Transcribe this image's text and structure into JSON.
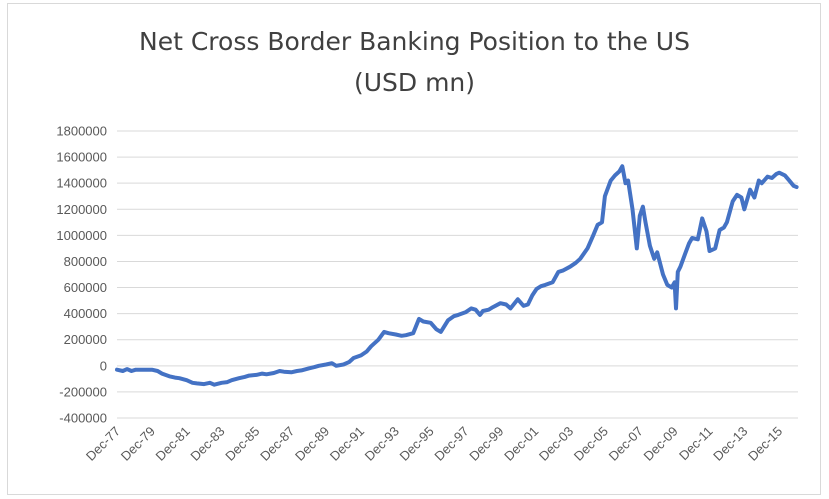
{
  "chart_data": {
    "type": "line",
    "title_line1": "Net Cross Border Banking Position to the US",
    "title_line2": "(USD mn)",
    "xlabel": "",
    "ylabel": "",
    "ylim": [
      -400000,
      1800000
    ],
    "y_ticks": [
      -400000,
      -200000,
      0,
      200000,
      400000,
      600000,
      800000,
      1000000,
      1200000,
      1400000,
      1600000,
      1800000
    ],
    "y_tick_labels": [
      "-400000",
      "-200000",
      "0",
      "200000",
      "400000",
      "600000",
      "800000",
      "1000000",
      "1200000",
      "1400000",
      "1600000",
      "1800000"
    ],
    "x_range": [
      1977.92,
      2017.0
    ],
    "x_ticks": [
      1977.92,
      1979.92,
      1981.92,
      1983.92,
      1985.92,
      1987.92,
      1989.92,
      1991.92,
      1993.92,
      1995.92,
      1997.92,
      1999.92,
      2001.92,
      2003.92,
      2005.92,
      2007.92,
      2009.92,
      2011.92,
      2013.92,
      2015.92
    ],
    "x_tick_labels": [
      "Dec-77",
      "Dec-79",
      "Dec-81",
      "Dec-83",
      "Dec-85",
      "Dec-87",
      "Dec-89",
      "Dec-91",
      "Dec-93",
      "Dec-95",
      "Dec-97",
      "Dec-99",
      "Dec-01",
      "Dec-03",
      "Dec-05",
      "Dec-07",
      "Dec-09",
      "Dec-11",
      "Dec-13",
      "Dec-15"
    ],
    "grid": true,
    "series": [
      {
        "name": "",
        "color": "#4472c4",
        "x": [
          1977.92,
          1978.25,
          1978.5,
          1978.75,
          1979.0,
          1979.5,
          1979.92,
          1980.25,
          1980.5,
          1980.92,
          1981.25,
          1981.5,
          1981.92,
          1982.25,
          1982.5,
          1982.92,
          1983.25,
          1983.5,
          1983.92,
          1984.25,
          1984.5,
          1984.92,
          1985.25,
          1985.5,
          1985.92,
          1986.25,
          1986.5,
          1986.92,
          1987.25,
          1987.5,
          1987.92,
          1988.25,
          1988.5,
          1988.92,
          1989.25,
          1989.5,
          1989.92,
          1990.25,
          1990.5,
          1990.92,
          1991.25,
          1991.5,
          1991.92,
          1992.25,
          1992.5,
          1992.92,
          1993.25,
          1993.5,
          1993.92,
          1994.25,
          1994.5,
          1994.92,
          1995.25,
          1995.5,
          1995.92,
          1996.25,
          1996.5,
          1996.92,
          1997.25,
          1997.5,
          1997.92,
          1998.25,
          1998.5,
          1998.75,
          1998.92,
          1999.25,
          1999.5,
          1999.92,
          2000.25,
          2000.5,
          2000.92,
          2001.25,
          2001.5,
          2001.75,
          2002.0,
          2002.25,
          2002.5,
          2002.92,
          2003.25,
          2003.5,
          2003.92,
          2004.25,
          2004.5,
          2004.92,
          2005.25,
          2005.5,
          2005.75,
          2005.92,
          2006.25,
          2006.5,
          2006.75,
          2006.92,
          2007.1,
          2007.25,
          2007.5,
          2007.75,
          2007.92,
          2008.1,
          2008.25,
          2008.5,
          2008.75,
          2008.92,
          2009.25,
          2009.5,
          2009.75,
          2009.92,
          2010.0,
          2010.1,
          2010.25,
          2010.5,
          2010.75,
          2010.92,
          2011.25,
          2011.5,
          2011.75,
          2011.92,
          2012.25,
          2012.5,
          2012.75,
          2012.92,
          2013.25,
          2013.5,
          2013.75,
          2013.92,
          2014.25,
          2014.5,
          2014.75,
          2014.92,
          2015.25,
          2015.5,
          2015.75,
          2015.92,
          2016.25,
          2016.5,
          2016.75,
          2016.92
        ],
        "y": [
          -30000,
          -40000,
          -25000,
          -40000,
          -30000,
          -30000,
          -30000,
          -40000,
          -60000,
          -80000,
          -90000,
          -95000,
          -110000,
          -130000,
          -135000,
          -140000,
          -130000,
          -145000,
          -130000,
          -125000,
          -110000,
          -95000,
          -85000,
          -75000,
          -70000,
          -60000,
          -65000,
          -55000,
          -40000,
          -45000,
          -50000,
          -40000,
          -35000,
          -20000,
          -10000,
          0,
          10000,
          20000,
          0,
          10000,
          30000,
          60000,
          80000,
          110000,
          150000,
          200000,
          260000,
          250000,
          240000,
          230000,
          235000,
          250000,
          360000,
          340000,
          330000,
          280000,
          260000,
          350000,
          380000,
          390000,
          410000,
          440000,
          430000,
          390000,
          420000,
          430000,
          450000,
          480000,
          470000,
          440000,
          510000,
          460000,
          470000,
          540000,
          590000,
          610000,
          620000,
          640000,
          720000,
          730000,
          760000,
          790000,
          820000,
          900000,
          1000000,
          1080000,
          1100000,
          1300000,
          1420000,
          1460000,
          1490000,
          1530000,
          1400000,
          1420000,
          1200000,
          900000,
          1150000,
          1220000,
          1100000,
          920000,
          820000,
          870000,
          700000,
          620000,
          600000,
          640000,
          440000,
          720000,
          760000,
          850000,
          940000,
          980000,
          970000,
          1130000,
          1030000,
          880000,
          900000,
          1040000,
          1060000,
          1100000,
          1260000,
          1310000,
          1290000,
          1200000,
          1350000,
          1290000,
          1420000,
          1400000,
          1450000,
          1440000,
          1470000,
          1480000,
          1460000,
          1420000,
          1380000,
          1370000
        ]
      }
    ]
  }
}
